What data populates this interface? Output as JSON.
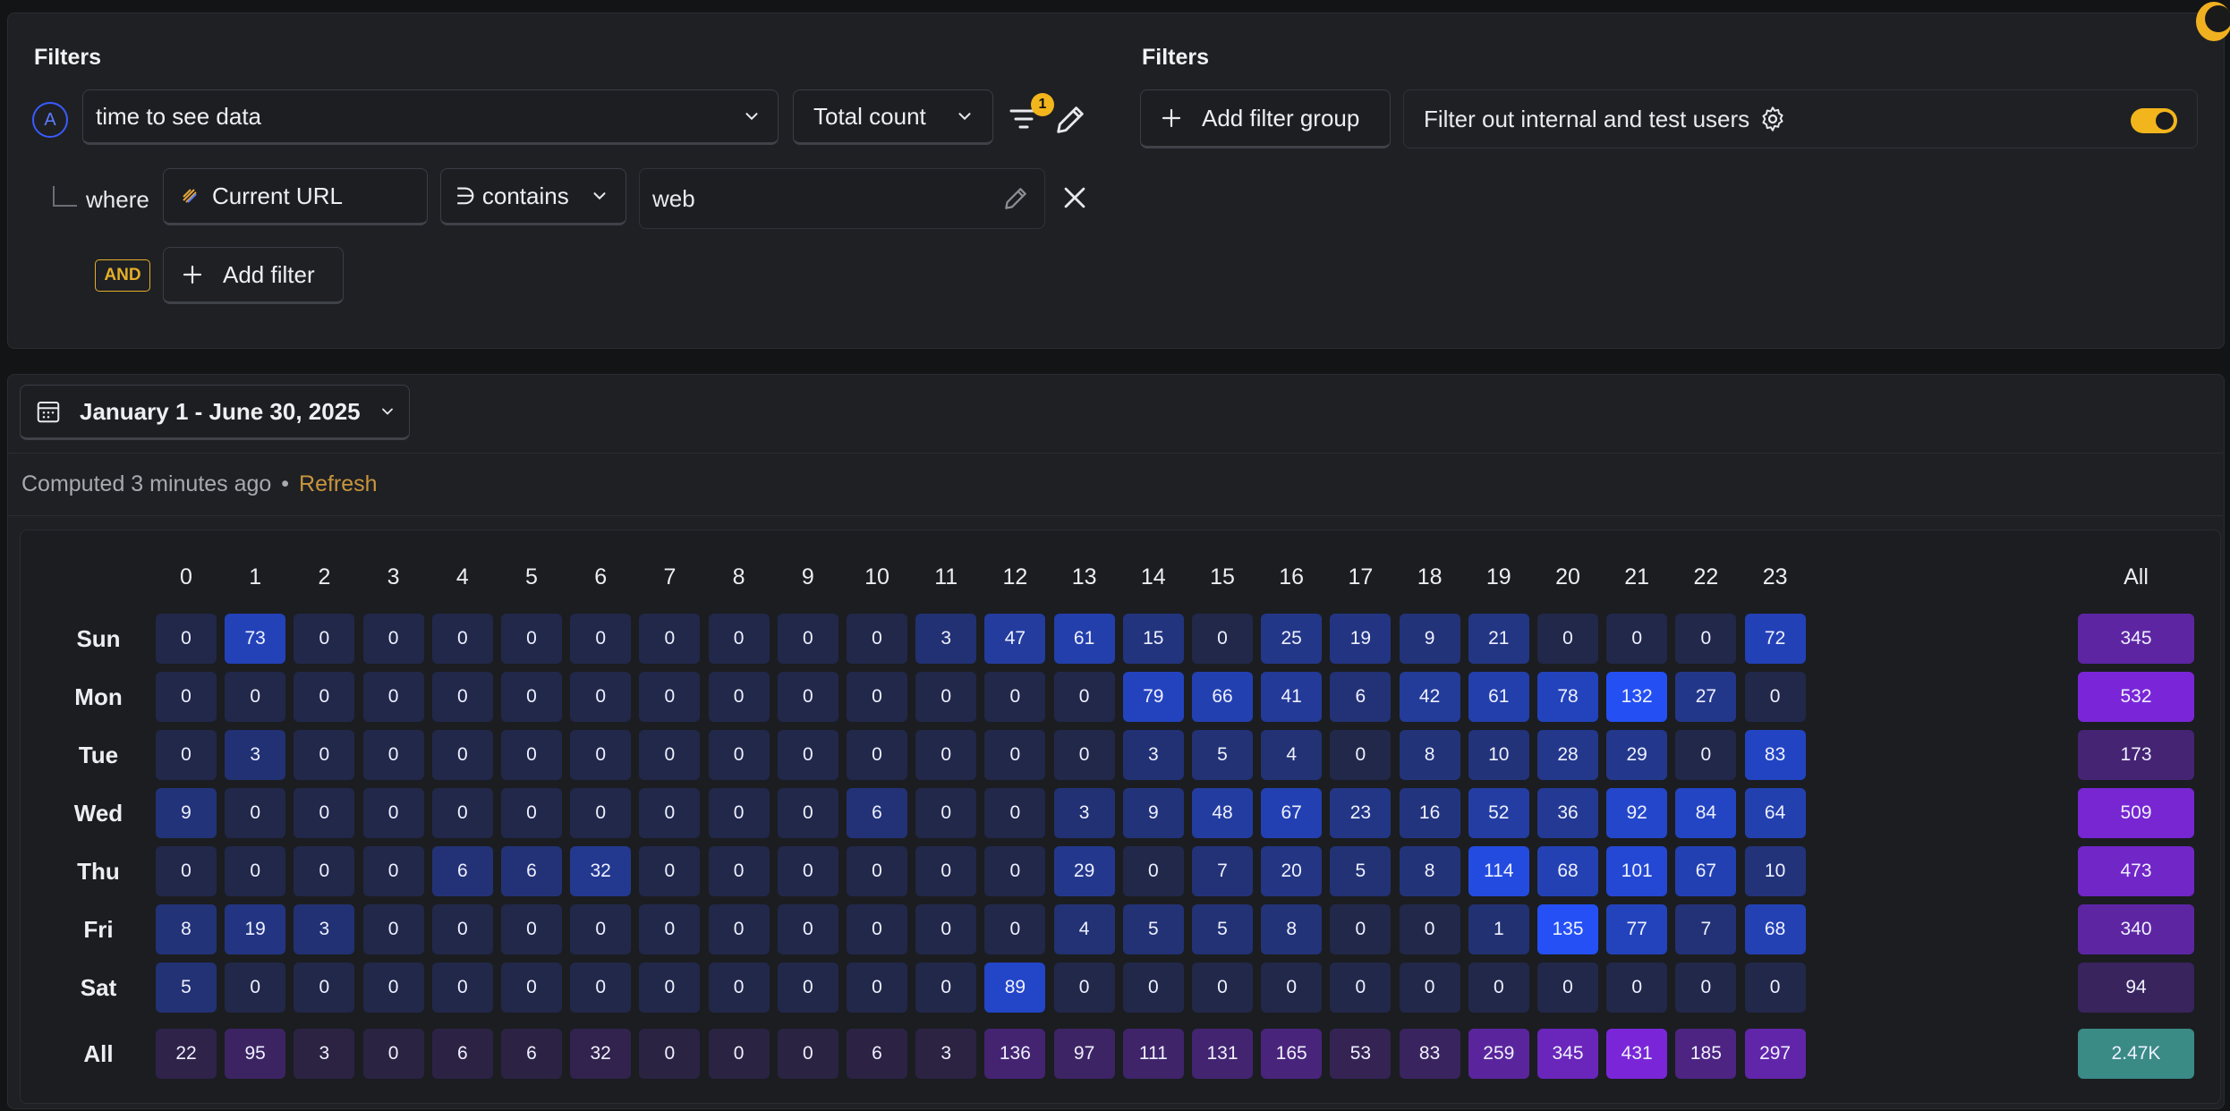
{
  "filters_left": {
    "heading": "Filters",
    "series_letter": "A",
    "event_value": "time to see data",
    "aggregation_value": "Total count",
    "filter_badge_count": "1",
    "where_label": "where",
    "property_value": "Current URL",
    "operator_value": "∋ contains",
    "filter_value": "web",
    "and_badge": "AND",
    "add_filter_label": "Add filter"
  },
  "filters_right": {
    "heading": "Filters",
    "add_filter_group_label": "Add filter group",
    "internal_users_label": "Filter out internal and test users",
    "toggle_on": true
  },
  "date_range": {
    "label": "January 1 - June 30, 2025"
  },
  "status": {
    "computed_text": "Computed 3 minutes ago",
    "separator": "•",
    "refresh_label": "Refresh"
  },
  "heatmap": {
    "hours": [
      "0",
      "1",
      "2",
      "3",
      "4",
      "5",
      "6",
      "7",
      "8",
      "9",
      "10",
      "11",
      "12",
      "13",
      "14",
      "15",
      "16",
      "17",
      "18",
      "19",
      "20",
      "21",
      "22",
      "23"
    ],
    "all_label": "All",
    "days": [
      "Sun",
      "Mon",
      "Tue",
      "Wed",
      "Thu",
      "Fri",
      "Sat"
    ],
    "values": [
      [
        0,
        73,
        0,
        0,
        0,
        0,
        0,
        0,
        0,
        0,
        0,
        3,
        47,
        61,
        15,
        0,
        25,
        19,
        9,
        21,
        0,
        0,
        0,
        72
      ],
      [
        0,
        0,
        0,
        0,
        0,
        0,
        0,
        0,
        0,
        0,
        0,
        0,
        0,
        0,
        79,
        66,
        41,
        6,
        42,
        61,
        78,
        132,
        27,
        0
      ],
      [
        0,
        3,
        0,
        0,
        0,
        0,
        0,
        0,
        0,
        0,
        0,
        0,
        0,
        0,
        3,
        5,
        4,
        0,
        8,
        10,
        28,
        29,
        0,
        83
      ],
      [
        9,
        0,
        0,
        0,
        0,
        0,
        0,
        0,
        0,
        0,
        6,
        0,
        0,
        3,
        9,
        48,
        67,
        23,
        16,
        52,
        36,
        92,
        84,
        64
      ],
      [
        0,
        0,
        0,
        0,
        6,
        6,
        32,
        0,
        0,
        0,
        0,
        0,
        0,
        29,
        0,
        7,
        20,
        5,
        8,
        114,
        68,
        101,
        67,
        10
      ],
      [
        8,
        19,
        3,
        0,
        0,
        0,
        0,
        0,
        0,
        0,
        0,
        0,
        0,
        4,
        5,
        5,
        8,
        0,
        0,
        1,
        135,
        77,
        7,
        68
      ],
      [
        5,
        0,
        0,
        0,
        0,
        0,
        0,
        0,
        0,
        0,
        0,
        0,
        89,
        0,
        0,
        0,
        0,
        0,
        0,
        0,
        0,
        0,
        0,
        0
      ]
    ],
    "row_totals": [
      "345",
      "532",
      "173",
      "509",
      "473",
      "340",
      "94"
    ],
    "col_totals": [
      "22",
      "95",
      "3",
      "0",
      "6",
      "6",
      "32",
      "0",
      "0",
      "0",
      "6",
      "3",
      "136",
      "97",
      "111",
      "131",
      "165",
      "53",
      "83",
      "259",
      "345",
      "431",
      "185",
      "297"
    ],
    "grand_total": "2.47K",
    "colors": {
      "cell_base": "#22284a",
      "cell_max": "#2450f5",
      "total_base": "#2b2342",
      "total_max": "#7a26d8",
      "grand": "#3a8a86"
    }
  }
}
